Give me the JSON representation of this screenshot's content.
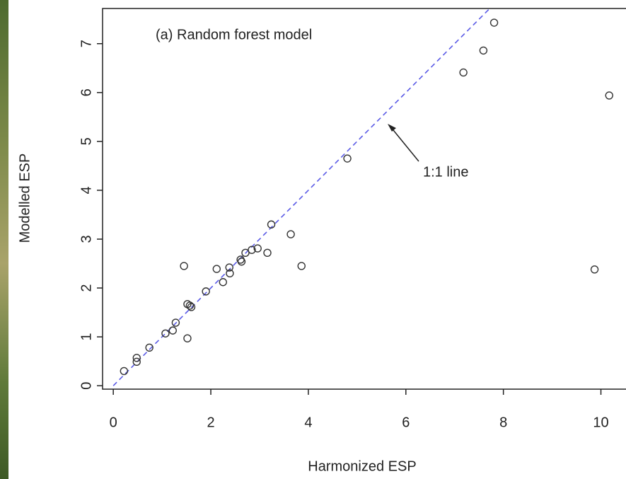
{
  "chart_data": {
    "type": "scatter",
    "title": "(a) Random forest model",
    "xlabel": "Harmonized ESP",
    "ylabel": "Modelled ESP",
    "annotation": "1:1 line",
    "x": [
      0.22,
      0.48,
      0.48,
      0.74,
      1.07,
      1.22,
      1.28,
      1.45,
      1.52,
      1.52,
      1.57,
      1.6,
      1.9,
      2.12,
      2.25,
      2.39,
      2.38,
      2.61,
      2.63,
      2.71,
      2.84,
      2.96,
      3.16,
      3.24,
      3.64,
      3.86,
      4.8,
      7.18,
      7.59,
      7.81,
      9.87,
      10.17
    ],
    "values": [
      0.3,
      0.57,
      0.49,
      0.78,
      1.07,
      1.13,
      1.29,
      2.45,
      0.97,
      1.67,
      1.64,
      1.61,
      1.93,
      2.39,
      2.12,
      2.3,
      2.42,
      2.58,
      2.54,
      2.72,
      2.78,
      2.81,
      2.72,
      3.3,
      3.1,
      2.45,
      4.65,
      6.41,
      6.86,
      7.43,
      2.38,
      5.94
    ],
    "color": "#333333",
    "line_color": "#5a5ae6",
    "xlim": [
      -0.22,
      10.5
    ],
    "ylim": [
      -0.07,
      7.72
    ],
    "xticks": [
      0,
      2,
      4,
      6,
      8,
      10
    ],
    "yticks": [
      0,
      1,
      2,
      3,
      4,
      5,
      6,
      7
    ]
  }
}
